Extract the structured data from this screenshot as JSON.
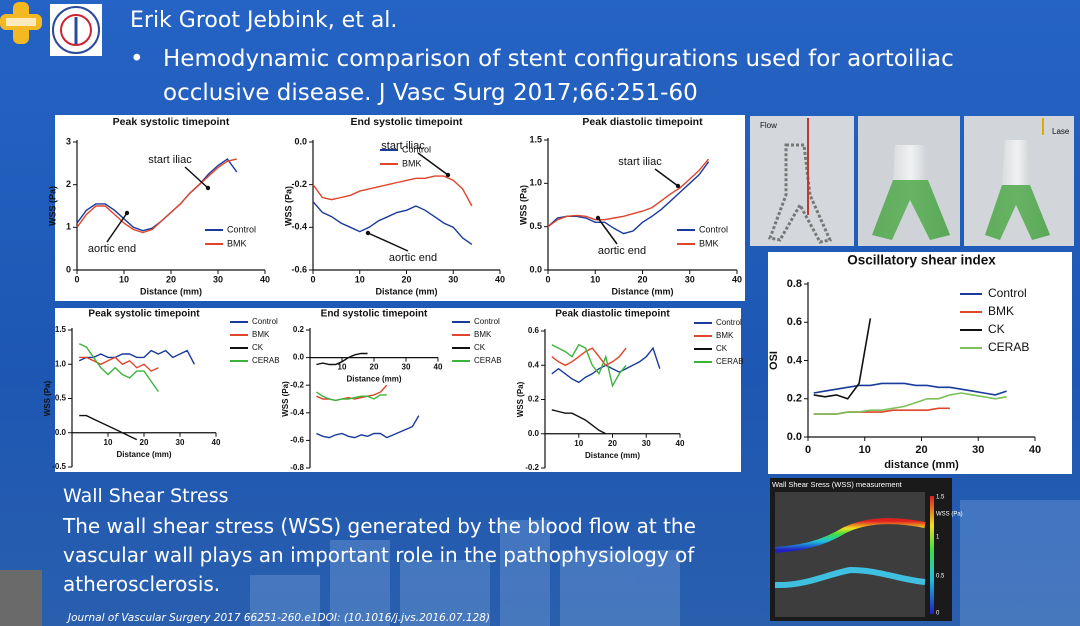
{
  "header": {
    "author": "Erik Groot Jebbink, et al.",
    "bullet": "Hemodynamic comparison of stent configurations used for aortoiliac occlusive disease. J Vasc Surg 2017;66:251-60"
  },
  "chart_data": [
    {
      "type": "line",
      "title": "Peak systolic timepoint",
      "x_label": "Distance (mm)",
      "y_label": "WSS (Pa)",
      "x": [
        0,
        2,
        4,
        6,
        8,
        10,
        12,
        14,
        16,
        18,
        20,
        22,
        24,
        26,
        28,
        30,
        32,
        34
      ],
      "series": [
        {
          "name": "Control",
          "color": "#1a3a9c",
          "values": [
            1.1,
            1.4,
            1.55,
            1.55,
            1.4,
            1.2,
            1.0,
            0.92,
            0.98,
            1.15,
            1.35,
            1.55,
            1.8,
            2.0,
            2.25,
            2.45,
            2.6,
            2.3
          ]
        },
        {
          "name": "BMK",
          "color": "#e0442a",
          "values": [
            1.0,
            1.3,
            1.5,
            1.5,
            1.3,
            1.1,
            0.95,
            0.88,
            0.95,
            1.15,
            1.35,
            1.55,
            1.8,
            2.0,
            2.2,
            2.4,
            2.55,
            2.6
          ]
        }
      ],
      "xlim": [
        0,
        40
      ],
      "xticks": [
        0,
        10,
        20,
        30,
        40
      ],
      "ylim": [
        0,
        3
      ],
      "yticks": [
        0,
        1,
        2,
        3
      ],
      "legend": "lower right",
      "annotations": [
        "start iliac",
        "aortic end"
      ]
    },
    {
      "type": "line",
      "title": "End systolic timepoint",
      "x_label": "Distance (mm)",
      "y_label": "WSS (Pa)",
      "x": [
        0,
        2,
        4,
        6,
        8,
        10,
        12,
        14,
        16,
        18,
        20,
        22,
        24,
        26,
        28,
        30,
        32,
        34
      ],
      "series": [
        {
          "name": "Control",
          "color": "#1a3a9c",
          "values": [
            -0.28,
            -0.33,
            -0.35,
            -0.38,
            -0.4,
            -0.42,
            -0.4,
            -0.37,
            -0.35,
            -0.33,
            -0.32,
            -0.3,
            -0.32,
            -0.35,
            -0.38,
            -0.4,
            -0.45,
            -0.48
          ]
        },
        {
          "name": "BMK",
          "color": "#e0442a",
          "values": [
            -0.2,
            -0.26,
            -0.27,
            -0.26,
            -0.25,
            -0.23,
            -0.22,
            -0.21,
            -0.2,
            -0.19,
            -0.18,
            -0.17,
            -0.17,
            -0.16,
            -0.16,
            -0.18,
            -0.22,
            -0.3
          ]
        }
      ],
      "xlim": [
        0,
        40
      ],
      "xticks": [
        0,
        10,
        20,
        30,
        40
      ],
      "ylim": [
        -0.6,
        0
      ],
      "yticks": [
        -0.6,
        -0.4,
        -0.2,
        {
          "value": 0,
          "label": "0.0"
        }
      ],
      "legend": "upper right",
      "annotations": [
        "start iliac",
        "aortic end"
      ]
    },
    {
      "type": "line",
      "title": "Peak diastolic timepoint",
      "x_label": "Distance (mm)",
      "y_label": "WSS (Pa)",
      "x": [
        0,
        2,
        4,
        6,
        8,
        10,
        12,
        14,
        16,
        18,
        20,
        22,
        24,
        26,
        28,
        30,
        32,
        34
      ],
      "series": [
        {
          "name": "Control",
          "color": "#1a3a9c",
          "values": [
            0.5,
            0.6,
            0.62,
            0.62,
            0.6,
            0.55,
            0.55,
            0.48,
            0.42,
            0.45,
            0.55,
            0.62,
            0.7,
            0.8,
            0.9,
            1.0,
            1.1,
            1.25
          ]
        },
        {
          "name": "BMK",
          "color": "#e0442a",
          "values": [
            0.5,
            0.58,
            0.62,
            0.63,
            0.62,
            0.58,
            0.58,
            0.6,
            0.62,
            0.65,
            0.68,
            0.72,
            0.8,
            0.88,
            0.95,
            1.05,
            1.15,
            1.28
          ]
        }
      ],
      "xlim": [
        0,
        40
      ],
      "xticks": [
        0,
        10,
        20,
        30,
        40
      ],
      "ylim": [
        0,
        1.5
      ],
      "yticks": [
        {
          "value": 0,
          "label": "0.0"
        },
        0.5,
        {
          "value": 1,
          "label": "1.0"
        },
        1.5
      ],
      "legend": "lower right",
      "annotations": [
        "start iliac",
        "aortic end"
      ]
    },
    {
      "type": "line",
      "title": "Peak systolic timepoint",
      "x_label": "Distance (mm)",
      "y_label": "WSS (Pa)",
      "x": [
        2,
        4,
        6,
        8,
        10,
        12,
        14,
        16,
        18,
        20,
        22,
        24,
        26,
        28,
        30,
        32,
        34
      ],
      "series": [
        {
          "name": "Control",
          "color": "#1a3a9c",
          "values": [
            1.05,
            1.1,
            1.1,
            1.15,
            1.1,
            1.1,
            1.15,
            1.15,
            1.1,
            1.1,
            1.2,
            1.15,
            1.2,
            1.1,
            1.15,
            1.2,
            1.0
          ]
        },
        {
          "name": "BMK",
          "color": "#e0442a",
          "values": [
            1.1,
            1.1,
            1.05,
            1.0,
            1.05,
            1.1,
            1.0,
            1.05,
            0.95,
            1.0,
            0.9,
            0.95,
            null,
            null,
            null,
            null,
            null
          ]
        },
        {
          "name": "CK",
          "color": "#111111",
          "values": [
            0.25,
            0.25,
            0.2,
            0.15,
            0.1,
            0.05,
            0.0,
            -0.05,
            -0.1,
            null,
            null,
            null,
            null,
            null,
            null,
            null,
            null
          ]
        },
        {
          "name": "CERAB",
          "color": "#3cb43c",
          "values": [
            1.3,
            1.25,
            1.1,
            0.95,
            0.85,
            0.95,
            0.85,
            0.8,
            0.9,
            0.9,
            0.75,
            0.6,
            null,
            null,
            null,
            null,
            null
          ]
        }
      ],
      "xlim": [
        0,
        40
      ],
      "xticks": [
        10,
        20,
        30,
        40
      ],
      "ylim": [
        -0.5,
        1.5
      ],
      "yticks": [
        -0.5,
        {
          "value": 0,
          "label": "0.0"
        },
        0.5,
        {
          "value": 1,
          "label": "1.0"
        },
        1.5
      ],
      "legend": "right"
    },
    {
      "type": "line",
      "title": "End systolic timepoint",
      "x_label": "Distance (mm)",
      "y_label": "WSS (Pa)",
      "x": [
        2,
        4,
        6,
        8,
        10,
        12,
        14,
        16,
        18,
        20,
        22,
        24,
        26,
        28,
        30,
        32,
        34
      ],
      "series": [
        {
          "name": "Control",
          "color": "#1a3a9c",
          "values": [
            -0.55,
            -0.57,
            -0.58,
            -0.56,
            -0.55,
            -0.57,
            -0.58,
            -0.56,
            -0.57,
            -0.55,
            -0.55,
            -0.58,
            -0.56,
            -0.54,
            -0.52,
            -0.5,
            -0.42
          ]
        },
        {
          "name": "BMK",
          "color": "#e0442a",
          "values": [
            -0.28,
            -0.3,
            -0.3,
            -0.31,
            -0.3,
            -0.29,
            -0.3,
            -0.29,
            -0.28,
            -0.27,
            -0.25,
            -0.2,
            null,
            null,
            null,
            null,
            null
          ]
        },
        {
          "name": "CK",
          "color": "#111111",
          "values": [
            -0.05,
            -0.04,
            -0.05,
            -0.05,
            -0.03,
            0.0,
            0.02,
            0.03,
            0.03,
            null,
            null,
            null,
            null,
            null,
            null,
            null,
            null
          ]
        },
        {
          "name": "CERAB",
          "color": "#3cb43c",
          "values": [
            -0.25,
            -0.28,
            -0.3,
            -0.31,
            -0.3,
            -0.3,
            -0.29,
            -0.28,
            -0.28,
            -0.3,
            -0.27,
            -0.27,
            null,
            null,
            null,
            null,
            null
          ]
        }
      ],
      "xlim": [
        0,
        40
      ],
      "xticks": [
        10,
        20,
        30,
        40
      ],
      "ylim": [
        -0.8,
        0.2
      ],
      "yticks": [
        -0.8,
        -0.6,
        -0.4,
        -0.2,
        {
          "value": 0,
          "label": "0.0"
        },
        0.2
      ],
      "legend": "right"
    },
    {
      "type": "line",
      "title": "Peak diastolic timepoint",
      "x_label": "Distance (mm)",
      "y_label": "WSS (Pa)",
      "x": [
        2,
        4,
        6,
        8,
        10,
        12,
        14,
        16,
        18,
        20,
        22,
        24,
        26,
        28,
        30,
        32,
        34
      ],
      "series": [
        {
          "name": "Control",
          "color": "#1a3a9c",
          "values": [
            0.35,
            0.38,
            0.35,
            0.32,
            0.3,
            0.33,
            0.35,
            0.38,
            0.4,
            0.38,
            0.36,
            0.38,
            0.4,
            0.42,
            0.45,
            0.5,
            0.38
          ]
        },
        {
          "name": "BMK",
          "color": "#e0442a",
          "values": [
            0.45,
            0.42,
            0.4,
            0.42,
            0.45,
            0.48,
            0.5,
            0.45,
            0.4,
            0.42,
            0.45,
            0.5,
            null,
            null,
            null,
            null,
            null
          ]
        },
        {
          "name": "CK",
          "color": "#111111",
          "values": [
            0.14,
            0.13,
            0.12,
            0.12,
            0.1,
            0.08,
            0.05,
            0.02,
            0.0,
            null,
            null,
            null,
            null,
            null,
            null,
            null,
            null
          ]
        },
        {
          "name": "CERAB",
          "color": "#3cb43c",
          "values": [
            0.52,
            0.5,
            0.48,
            0.45,
            0.52,
            0.5,
            0.4,
            0.35,
            0.45,
            0.28,
            0.35,
            0.4,
            null,
            null,
            null,
            null,
            null
          ]
        }
      ],
      "xlim": [
        0,
        40
      ],
      "xticks": [
        10,
        20,
        30,
        40
      ],
      "ylim": [
        -0.2,
        0.6
      ],
      "yticks": [
        -0.2,
        {
          "value": 0,
          "label": "0.0"
        },
        0.2,
        0.4,
        0.6
      ],
      "legend": "right"
    },
    {
      "type": "line",
      "title": "Oscillatory shear index",
      "x_label": "distance (mm)",
      "y_label": "OSI",
      "x": [
        1,
        3,
        5,
        7,
        9,
        11,
        13,
        15,
        17,
        19,
        21,
        23,
        25,
        27,
        29,
        31,
        33,
        35
      ],
      "series": [
        {
          "name": "Control",
          "color": "#1a3a9c",
          "values": [
            0.23,
            0.24,
            0.25,
            0.26,
            0.27,
            0.27,
            0.28,
            0.28,
            0.28,
            0.27,
            0.27,
            0.26,
            0.26,
            0.25,
            0.24,
            0.23,
            0.22,
            0.24
          ]
        },
        {
          "name": "BMK",
          "color": "#e0442a",
          "values": [
            0.12,
            0.12,
            0.12,
            0.13,
            0.13,
            0.13,
            0.13,
            0.14,
            0.14,
            0.14,
            0.14,
            0.15,
            0.15,
            null,
            null,
            null,
            null,
            null
          ]
        },
        {
          "name": "CK",
          "color": "#111111",
          "values": [
            0.22,
            0.21,
            0.22,
            0.2,
            0.28,
            0.62,
            null,
            null,
            null,
            null,
            null,
            null,
            null,
            null,
            null,
            null,
            null,
            null
          ]
        },
        {
          "name": "CERAB",
          "color": "#7cc05a",
          "values": [
            0.12,
            0.12,
            0.12,
            0.13,
            0.13,
            0.14,
            0.14,
            0.15,
            0.16,
            0.18,
            0.2,
            0.2,
            0.22,
            0.23,
            0.22,
            0.21,
            0.2,
            0.21
          ]
        }
      ],
      "xlim": [
        0,
        40
      ],
      "xticks": [
        0,
        10,
        20,
        30,
        40
      ],
      "ylim": [
        0,
        0.8
      ],
      "yticks": [
        {
          "value": 0,
          "label": "0.0"
        },
        0.2,
        0.4,
        0.6,
        0.8
      ],
      "legend": "upper right"
    }
  ],
  "images": {
    "stent_labels": [
      "Flow",
      "Lase"
    ],
    "ultrasound": {
      "title": "Wall Shear Sress (WSS) measurement",
      "scale_label": "WSS (Pa)",
      "scale_ticks": [
        "1.5",
        "1",
        "0.5",
        "0"
      ]
    }
  },
  "body": {
    "heading": "Wall Shear Stress",
    "text": "The wall shear stress (WSS) generated by the blood flow at the vascular wall plays an important role in the pathophysiology of atherosclerosis."
  },
  "footer": {
    "citation": "Journal of Vascular Surgery 2017 66251-260.e1DOI: (10.1016/j.jvs.2016.07.128)"
  }
}
